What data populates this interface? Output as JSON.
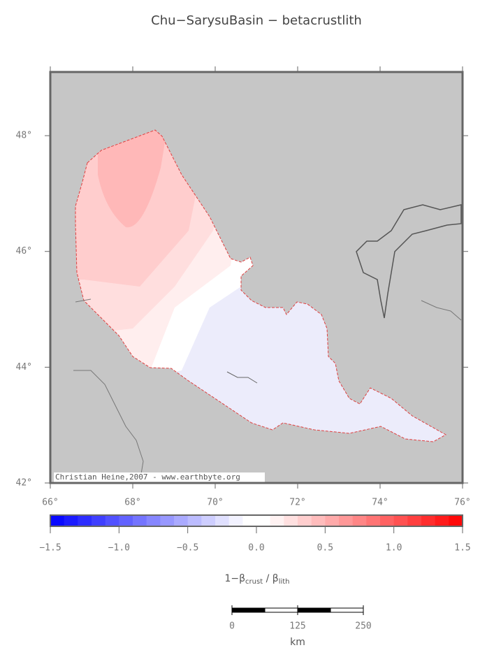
{
  "title": "Chu−SarysuBasin − betacrustlith",
  "map": {
    "lon_lim": [
      66,
      76
    ],
    "lat_lim": [
      42,
      49.1
    ],
    "lon_ticks": [
      {
        "value": 66,
        "label": "66°"
      },
      {
        "value": 68,
        "label": "68°"
      },
      {
        "value": 70,
        "label": "70°"
      },
      {
        "value": 72,
        "label": "72°"
      },
      {
        "value": 74,
        "label": "74°"
      },
      {
        "value": 76,
        "label": "76°"
      }
    ],
    "lat_ticks": [
      {
        "value": 42,
        "label": "42°"
      },
      {
        "value": 44,
        "label": "44°"
      },
      {
        "value": 46,
        "label": "46°"
      },
      {
        "value": 48,
        "label": "48°"
      }
    ],
    "credit": "Christian Heine,2007 - www.earthbyte.org"
  },
  "colorbar": {
    "range": [
      -1.5,
      1.5
    ],
    "step": 0.1,
    "ticks": [
      {
        "value": -1.5,
        "label": "−1.5"
      },
      {
        "value": -1,
        "label": "−1.0"
      },
      {
        "value": -0.5,
        "label": "−0.5"
      },
      {
        "value": 0,
        "label": "0.0"
      },
      {
        "value": 0.5,
        "label": "0.5"
      },
      {
        "value": 1,
        "label": "1.0"
      },
      {
        "value": 1.5,
        "label": "1.5"
      }
    ],
    "label": {
      "main": "1−β",
      "sub1": "crust",
      "mid": " / β",
      "sub2": "lith"
    }
  },
  "scale_bar": {
    "range": [
      0,
      250
    ],
    "ticks": [
      0,
      125,
      250
    ],
    "unit": "km"
  }
}
